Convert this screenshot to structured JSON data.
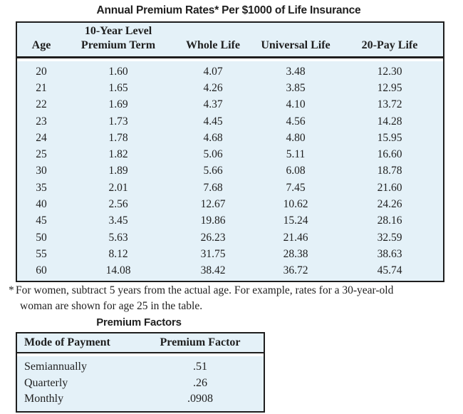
{
  "colors": {
    "table_bg": "#e4f1f8",
    "border": "#1e1e1e",
    "text": "#1f1f1f"
  },
  "rates_table": {
    "title": "Annual Premium Rates* Per $1000 of Life Insurance",
    "header": {
      "age": "Age",
      "term_line1": "10-Year Level",
      "term_line2": "Premium Term",
      "whole_life": "Whole Life",
      "universal_life": "Universal Life",
      "twenty_pay_life": "20-Pay Life"
    },
    "rows": [
      [
        "20",
        "1.60",
        "4.07",
        "3.48",
        "12.30"
      ],
      [
        "21",
        "1.65",
        "4.26",
        "3.85",
        "12.95"
      ],
      [
        "22",
        "1.69",
        "4.37",
        "4.10",
        "13.72"
      ],
      [
        "23",
        "1.73",
        "4.45",
        "4.56",
        "14.28"
      ],
      [
        "24",
        "1.78",
        "4.68",
        "4.80",
        "15.95"
      ],
      [
        "25",
        "1.82",
        "5.06",
        "5.11",
        "16.60"
      ],
      [
        "30",
        "1.89",
        "5.66",
        "6.08",
        "18.78"
      ],
      [
        "35",
        "2.01",
        "7.68",
        "7.45",
        "21.60"
      ],
      [
        "40",
        "2.56",
        "12.67",
        "10.62",
        "24.26"
      ],
      [
        "45",
        "3.45",
        "19.86",
        "15.24",
        "28.16"
      ],
      [
        "50",
        "5.63",
        "26.23",
        "21.46",
        "32.59"
      ],
      [
        "55",
        "8.12",
        "31.75",
        "28.38",
        "38.63"
      ],
      [
        "60",
        "14.08",
        "38.42",
        "36.72",
        "45.74"
      ]
    ]
  },
  "footnote": {
    "marker": "*",
    "line1": "For women, subtract 5 years from the actual age. For example, rates for a 30-year-old",
    "line2": "woman are shown for age 25 in the table."
  },
  "factors_table": {
    "title": "Premium Factors",
    "header": {
      "mode_of_payment": "Mode of Payment",
      "premium_factor": "Premium Factor"
    },
    "rows": [
      [
        "Semiannually",
        ".51"
      ],
      [
        "Quarterly",
        ".26"
      ],
      [
        "Monthly",
        ".0908"
      ]
    ]
  }
}
